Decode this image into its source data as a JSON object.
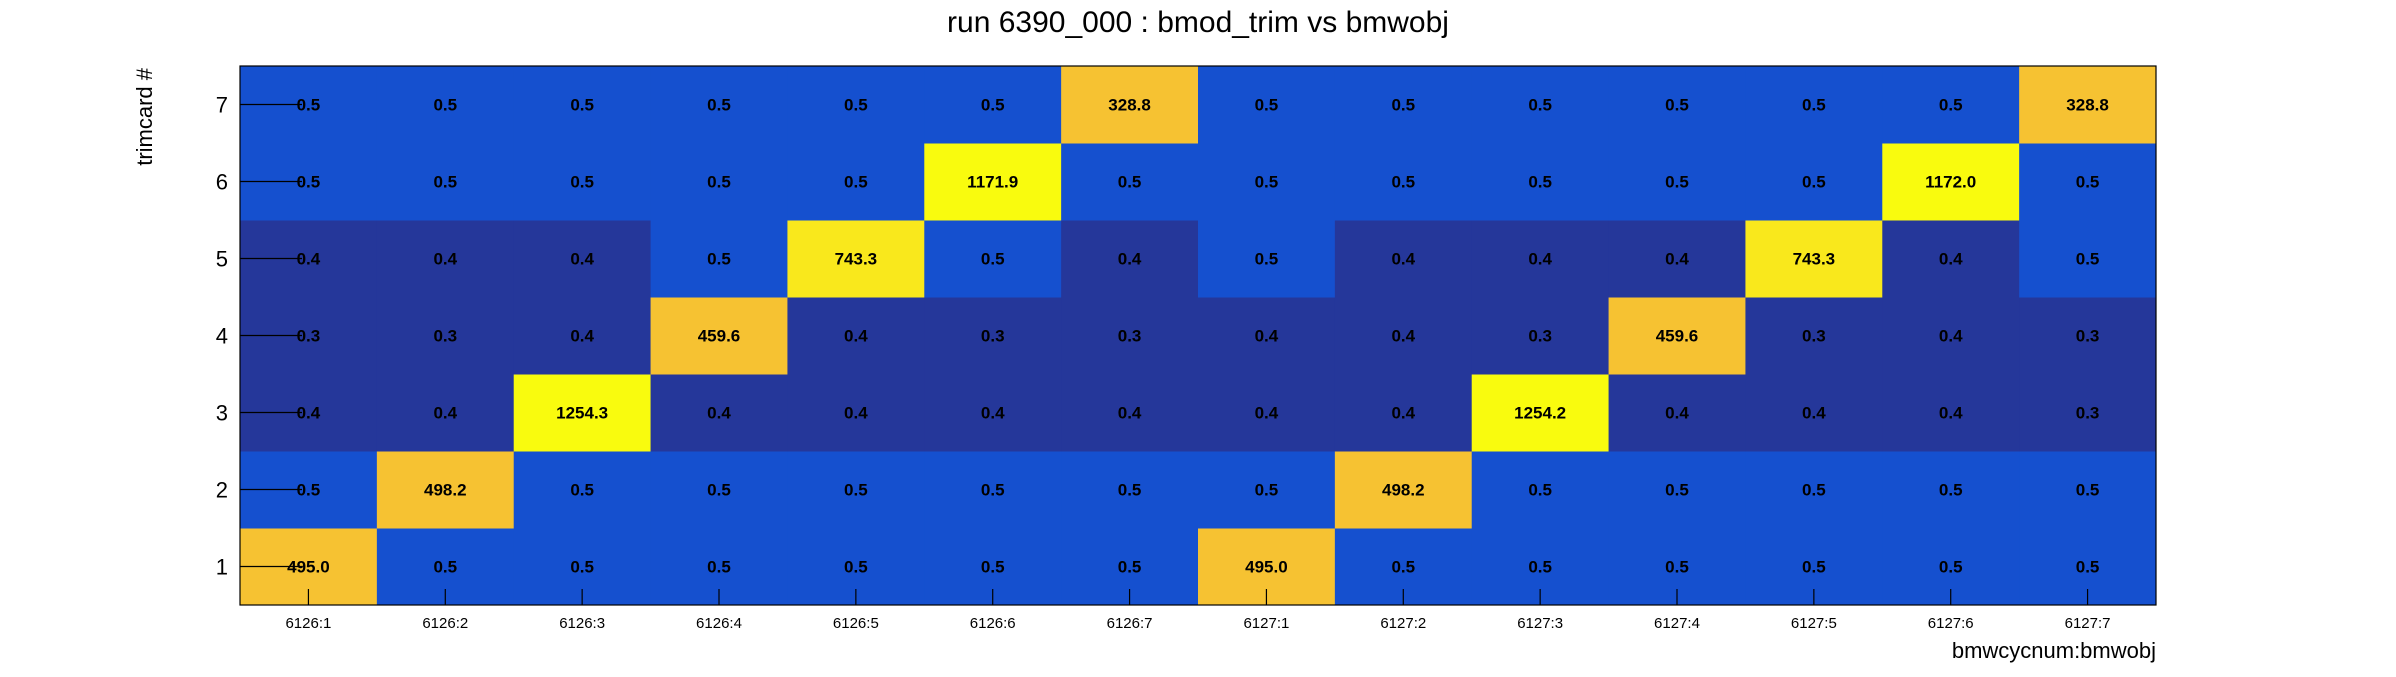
{
  "chart_data": {
    "type": "heatmap",
    "title": "run 6390_000 : bmod_trim vs bmwobj",
    "xlabel": "bmwcycnum:bmwobj",
    "ylabel": "trimcard #",
    "x_categories": [
      "6126:1",
      "6126:2",
      "6126:3",
      "6126:4",
      "6126:5",
      "6126:6",
      "6126:7",
      "6127:1",
      "6127:2",
      "6127:3",
      "6127:4",
      "6127:5",
      "6127:6",
      "6127:7"
    ],
    "y_categories": [
      "1",
      "2",
      "3",
      "4",
      "5",
      "6",
      "7"
    ],
    "values": [
      [
        "495.0",
        "0.5",
        "0.5",
        "0.5",
        "0.5",
        "0.5",
        "0.5",
        "495.0",
        "0.5",
        "0.5",
        "0.5",
        "0.5",
        "0.5",
        "0.5"
      ],
      [
        "0.5",
        "498.2",
        "0.5",
        "0.5",
        "0.5",
        "0.5",
        "0.5",
        "0.5",
        "498.2",
        "0.5",
        "0.5",
        "0.5",
        "0.5",
        "0.5"
      ],
      [
        "0.4",
        "0.4",
        "1254.3",
        "0.4",
        "0.4",
        "0.4",
        "0.4",
        "0.4",
        "0.4",
        "1254.2",
        "0.4",
        "0.4",
        "0.4",
        "0.3"
      ],
      [
        "0.3",
        "0.3",
        "0.4",
        "459.6",
        "0.4",
        "0.3",
        "0.3",
        "0.4",
        "0.4",
        "0.3",
        "459.6",
        "0.3",
        "0.4",
        "0.3"
      ],
      [
        "0.4",
        "0.4",
        "0.4",
        "0.5",
        "743.3",
        "0.5",
        "0.4",
        "0.5",
        "0.4",
        "0.4",
        "0.4",
        "743.3",
        "0.4",
        "0.5"
      ],
      [
        "0.5",
        "0.5",
        "0.5",
        "0.5",
        "0.5",
        "1171.9",
        "0.5",
        "0.5",
        "0.5",
        "0.5",
        "0.5",
        "0.5",
        "1172.0",
        "0.5"
      ],
      [
        "0.5",
        "0.5",
        "0.5",
        "0.5",
        "0.5",
        "0.5",
        "328.8",
        "0.5",
        "0.5",
        "0.5",
        "0.5",
        "0.5",
        "0.5",
        "328.8"
      ]
    ],
    "colors": {
      "low_dark": "#25379a",
      "low_bright": "#1550cf",
      "mid_orange": "#f6c232",
      "high_yellow": "#f9e81c",
      "max_yellow": "#f9fb0e"
    },
    "grid": false,
    "legend": "none"
  }
}
